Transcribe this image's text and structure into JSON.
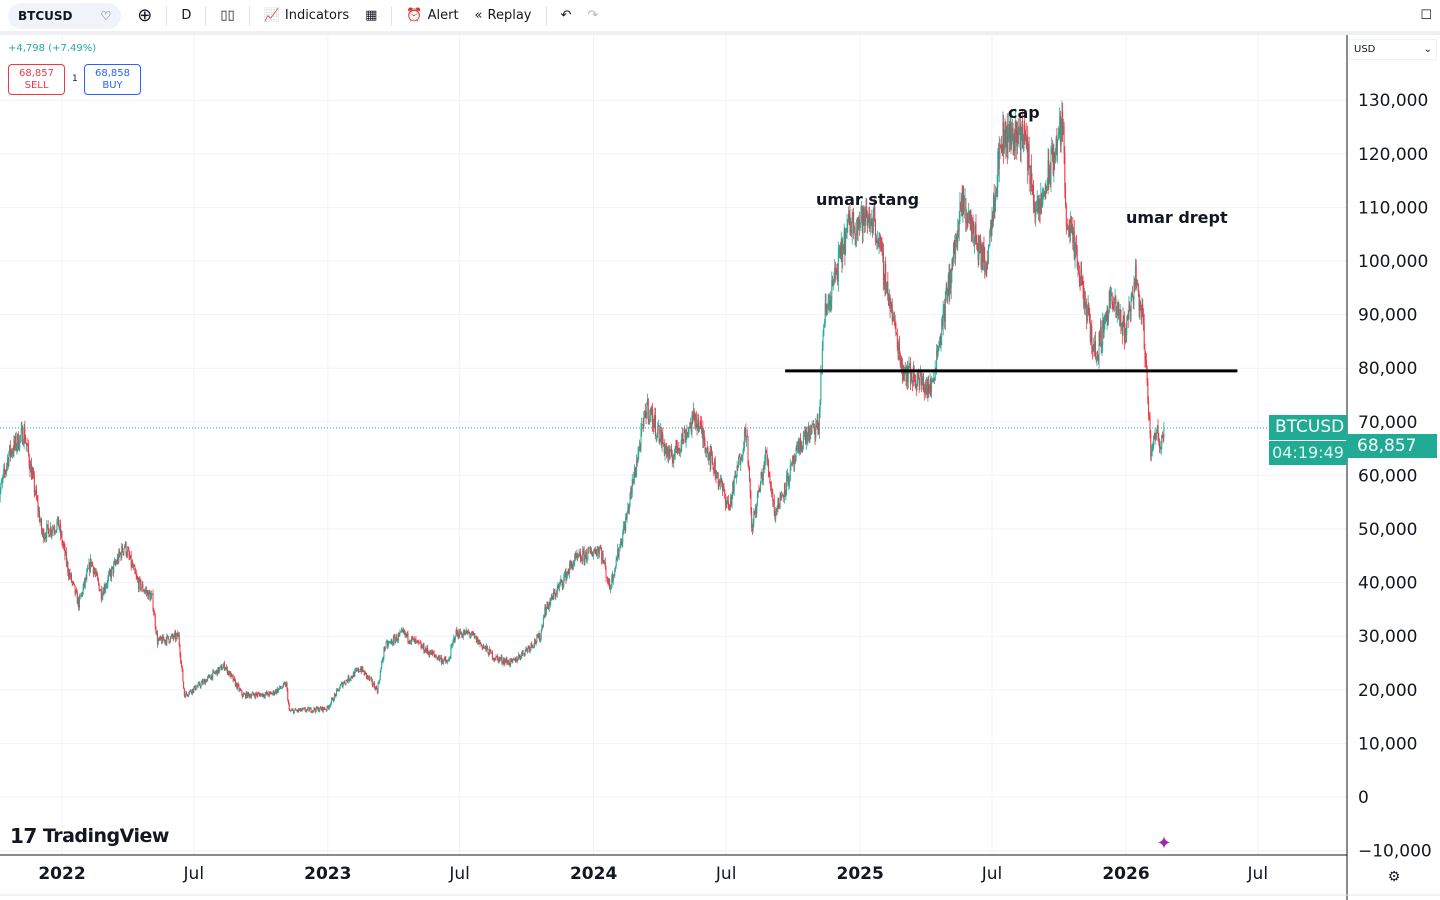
{
  "toolbar": {
    "symbol": "BTCUSD",
    "interval": "D",
    "indicators": "Indicators",
    "alert": "Alert",
    "replay": "Replay"
  },
  "legend": {
    "change": "+4,798 (+7.49%)",
    "sell_price": "68,857",
    "sell_label": "SELL",
    "buy_price": "68,858",
    "buy_label": "BUY",
    "quantity": "1"
  },
  "currency": "USD",
  "watermark": "TradingView",
  "last": {
    "symbol": "BTCUSD",
    "price": "68,857",
    "countdown": "04:19:49"
  },
  "colors": {
    "up": "#22ab94",
    "down": "#f23645",
    "last": "#22ab94"
  },
  "chart_data": {
    "type": "candlestick",
    "symbol": "BTCUSD",
    "interval": "D",
    "xticks": [
      "2022",
      "Jul",
      "2023",
      "Jul",
      "2024",
      "Jul",
      "2025",
      "Jul",
      "2026",
      "Jul"
    ],
    "xtick_dates": [
      "2022-01-01",
      "2022-07-01",
      "2023-01-01",
      "2023-07-01",
      "2024-01-01",
      "2024-07-01",
      "2025-01-01",
      "2025-07-01",
      "2026-01-01",
      "2026-07-01"
    ],
    "yticks": [
      130000,
      120000,
      110000,
      100000,
      90000,
      80000,
      70000,
      60000,
      50000,
      40000,
      30000,
      20000,
      10000,
      0,
      -10000
    ],
    "ytick_labels": [
      "130,000",
      "120,000",
      "110,000",
      "100,000",
      "90,000",
      "80,000",
      "70,000",
      "60,000",
      "50,000",
      "40,000",
      "30,000",
      "20,000",
      "10,000",
      "0",
      "−10,000"
    ],
    "ylim": [
      -10000,
      130000
    ],
    "grid": true,
    "approx_closes": [
      [
        "2021-10-05",
        55000
      ],
      [
        "2021-10-20",
        64000
      ],
      [
        "2021-11-10",
        68000
      ],
      [
        "2021-11-25",
        57000
      ],
      [
        "2021-12-05",
        49000
      ],
      [
        "2021-12-27",
        51000
      ],
      [
        "2022-01-10",
        42000
      ],
      [
        "2022-01-24",
        36000
      ],
      [
        "2022-02-10",
        44000
      ],
      [
        "2022-02-24",
        38000
      ],
      [
        "2022-03-28",
        47000
      ],
      [
        "2022-04-15",
        40000
      ],
      [
        "2022-05-05",
        37000
      ],
      [
        "2022-05-12",
        29000
      ],
      [
        "2022-06-10",
        30000
      ],
      [
        "2022-06-18",
        19000
      ],
      [
        "2022-07-10",
        21000
      ],
      [
        "2022-08-12",
        24500
      ],
      [
        "2022-09-06",
        19000
      ],
      [
        "2022-10-15",
        19200
      ],
      [
        "2022-11-05",
        21000
      ],
      [
        "2022-11-09",
        16000
      ],
      [
        "2022-12-31",
        16500
      ],
      [
        "2023-01-20",
        21000
      ],
      [
        "2023-02-15",
        24000
      ],
      [
        "2023-03-10",
        20000
      ],
      [
        "2023-03-20",
        28000
      ],
      [
        "2023-04-14",
        30500
      ],
      [
        "2023-05-20",
        27000
      ],
      [
        "2023-06-15",
        25000
      ],
      [
        "2023-06-25",
        30500
      ],
      [
        "2023-07-15",
        30500
      ],
      [
        "2023-08-18",
        26000
      ],
      [
        "2023-09-11",
        25000
      ],
      [
        "2023-10-20",
        30000
      ],
      [
        "2023-10-25",
        34500
      ],
      [
        "2023-12-05",
        44000
      ],
      [
        "2024-01-10",
        46500
      ],
      [
        "2024-01-23",
        39000
      ],
      [
        "2024-02-15",
        52000
      ],
      [
        "2024-03-14",
        73000
      ],
      [
        "2024-04-15",
        63000
      ],
      [
        "2024-05-20",
        71000
      ],
      [
        "2024-07-05",
        54000
      ],
      [
        "2024-07-29",
        69000
      ],
      [
        "2024-08-05",
        50000
      ],
      [
        "2024-08-25",
        64000
      ],
      [
        "2024-09-06",
        53000
      ],
      [
        "2024-10-15",
        67000
      ],
      [
        "2024-11-05",
        69000
      ],
      [
        "2024-11-12",
        89000
      ],
      [
        "2024-12-17",
        107000
      ],
      [
        "2025-01-20",
        108000
      ],
      [
        "2025-02-28",
        80000
      ],
      [
        "2025-04-08",
        76000
      ],
      [
        "2025-05-22",
        111000
      ],
      [
        "2025-06-22",
        99000
      ],
      [
        "2025-07-14",
        123000
      ],
      [
        "2025-08-14",
        124000
      ],
      [
        "2025-09-01",
        108000
      ],
      [
        "2025-10-06",
        126000
      ],
      [
        "2025-10-10",
        110000
      ],
      [
        "2025-11-21",
        82000
      ],
      [
        "2025-12-10",
        93000
      ],
      [
        "2025-12-31",
        87000
      ],
      [
        "2026-01-14",
        97000
      ],
      [
        "2026-01-25",
        88000
      ],
      [
        "2026-02-05",
        63000
      ],
      [
        "2026-02-10",
        69000
      ],
      [
        "2026-02-17",
        66000
      ],
      [
        "2026-02-22",
        68857
      ]
    ],
    "last_price": 68857,
    "horizontal_line": {
      "price": 79500,
      "from": "2024-09-20",
      "to": "2026-06-03",
      "color": "#000000"
    },
    "annotations": [
      {
        "text": "umar stang",
        "date": "2024-12-20",
        "price": 110000
      },
      {
        "text": "cap",
        "date": "2025-07-30",
        "price": 126000
      },
      {
        "text": "umar drept",
        "date": "2025-12-25",
        "price": 107000
      }
    ]
  }
}
